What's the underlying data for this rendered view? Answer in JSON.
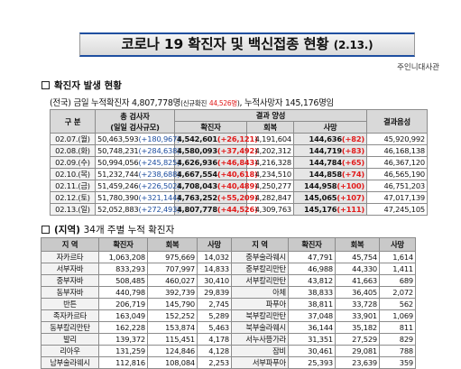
{
  "title": {
    "main": "코로나 19 확진자 및 백신접종 현황",
    "date": "(2.13.)"
  },
  "embassy": "주인니대사관",
  "section1": {
    "heading": "확진자 발생 현황"
  },
  "summary": {
    "prefix": "(전국)",
    "today_label": "금일 누적확진자",
    "total": "4,807,778명",
    "new_open": "(신규확진",
    "new_value": "44,526명",
    "new_close": ")",
    "deaths_label": ", 누적사망자",
    "deaths": "145,176명",
    "suffix": "임"
  },
  "table1": {
    "h_category": "구 분",
    "h_tests": "총 검사자",
    "h_tests_sub": "(일일 검사규모)",
    "h_results": "결과 양성",
    "h_confirmed": "확진자",
    "h_recovered": "회복",
    "h_deaths": "사망",
    "h_negative": "결과음성",
    "rows": [
      {
        "date": "02.07.(월)",
        "tests": "50,463,593",
        "tests_new": "(+180,967)",
        "confirmed": "4,542,601",
        "conf_new": "(+26,121)",
        "recovered": "4,191,604",
        "deaths": "144,636",
        "deaths_new": "(+82)",
        "negative": "45,920,992"
      },
      {
        "date": "02.08.(화)",
        "tests": "50,748,231",
        "tests_new": "(+284,638)",
        "confirmed": "4,580,093",
        "conf_new": "(+37,492)",
        "recovered": "4,202,312",
        "deaths": "144,719",
        "deaths_new": "(+83)",
        "negative": "46,168,138"
      },
      {
        "date": "02.09.(수)",
        "tests": "50,994,056",
        "tests_new": "(+245,825)",
        "confirmed": "4,626,936",
        "conf_new": "(+46,843)",
        "recovered": "4,216,328",
        "deaths": "144,784",
        "deaths_new": "(+65)",
        "negative": "46,367,120"
      },
      {
        "date": "02.10.(목)",
        "tests": "51,232,744",
        "tests_new": "(+238,688)",
        "confirmed": "4,667,554",
        "conf_new": "(+40,618)",
        "recovered": "4,234,510",
        "deaths": "144,858",
        "deaths_new": "(+74)",
        "negative": "46,565,190"
      },
      {
        "date": "02.11.(금)",
        "tests": "51,459,246",
        "tests_new": "(+226,502)",
        "confirmed": "4,708,043",
        "conf_new": "(+40,489)",
        "recovered": "4,250,277",
        "deaths": "144,958",
        "deaths_new": "(+100)",
        "negative": "46,751,203"
      },
      {
        "date": "02.12.(토)",
        "tests": "51,780,390",
        "tests_new": "(+321,144)",
        "confirmed": "4,763,252",
        "conf_new": "(+55,209)",
        "recovered": "4,282,847",
        "deaths": "145,065",
        "deaths_new": "(+107)",
        "negative": "47,017,139"
      },
      {
        "date": "02.13.(일)",
        "tests": "52,052,883",
        "tests_new": "(+272,493)",
        "confirmed": "4,807,778",
        "conf_new": "(+44,526)",
        "recovered": "4,309,763",
        "deaths": "145,176",
        "deaths_new": "(+111)",
        "negative": "47,245,105"
      }
    ]
  },
  "section2": {
    "prefix": "(지역)",
    "text": "34개 주별 누적 확진자"
  },
  "table2": {
    "headers": [
      "지 역",
      "확진자",
      "회복",
      "사망",
      "지 역",
      "확진자",
      "회복",
      "사망"
    ],
    "rows": [
      {
        "r1": "자카르타",
        "c1": "1,063,208",
        "rc1": "975,669",
        "d1": "14,032",
        "r2": "중부술라웨시",
        "c2": "47,791",
        "rc2": "45,754",
        "d2": "1,614"
      },
      {
        "r1": "서부자바",
        "c1": "833,293",
        "rc1": "707,997",
        "d1": "14,833",
        "r2": "중부칼리만탄",
        "c2": "46,988",
        "rc2": "44,330",
        "d2": "1,411"
      },
      {
        "r1": "중부자바",
        "c1": "508,485",
        "rc1": "460,027",
        "d1": "30,410",
        "r2": "서부칼리만탄",
        "c2": "43,812",
        "rc2": "41,663",
        "d2": "689"
      },
      {
        "r1": "동부자바",
        "c1": "440,798",
        "rc1": "392,739",
        "d1": "29,839",
        "r2": "아체",
        "c2": "38,833",
        "rc2": "36,405",
        "d2": "2,072"
      },
      {
        "r1": "반튼",
        "c1": "206,719",
        "rc1": "145,790",
        "d1": "2,745",
        "r2": "파푸아",
        "c2": "38,811",
        "rc2": "33,728",
        "d2": "562"
      },
      {
        "r1": "족자카르타",
        "c1": "163,049",
        "rc1": "152,252",
        "d1": "5,289",
        "r2": "북부칼리만탄",
        "c2": "37,048",
        "rc2": "33,901",
        "d2": "1,069"
      },
      {
        "r1": "동부칼리만탄",
        "c1": "162,228",
        "rc1": "153,874",
        "d1": "5,463",
        "r2": "북부술라웨시",
        "c2": "36,144",
        "rc2": "35,182",
        "d2": "811"
      },
      {
        "r1": "발리",
        "c1": "139,372",
        "rc1": "115,451",
        "d1": "4,178",
        "r2": "서누사뜽가라",
        "c2": "31,351",
        "rc2": "27,529",
        "d2": "829"
      },
      {
        "r1": "리아우",
        "c1": "131,259",
        "rc1": "124,846",
        "d1": "4,128",
        "r2": "잠비",
        "c2": "30,461",
        "rc2": "29,081",
        "d2": "788"
      },
      {
        "r1": "남부술라웨시",
        "c1": "112,816",
        "rc1": "108,084",
        "d1": "2,253",
        "r2": "서부파푸아",
        "c2": "25,393",
        "rc2": "23,639",
        "d2": "359"
      }
    ]
  }
}
